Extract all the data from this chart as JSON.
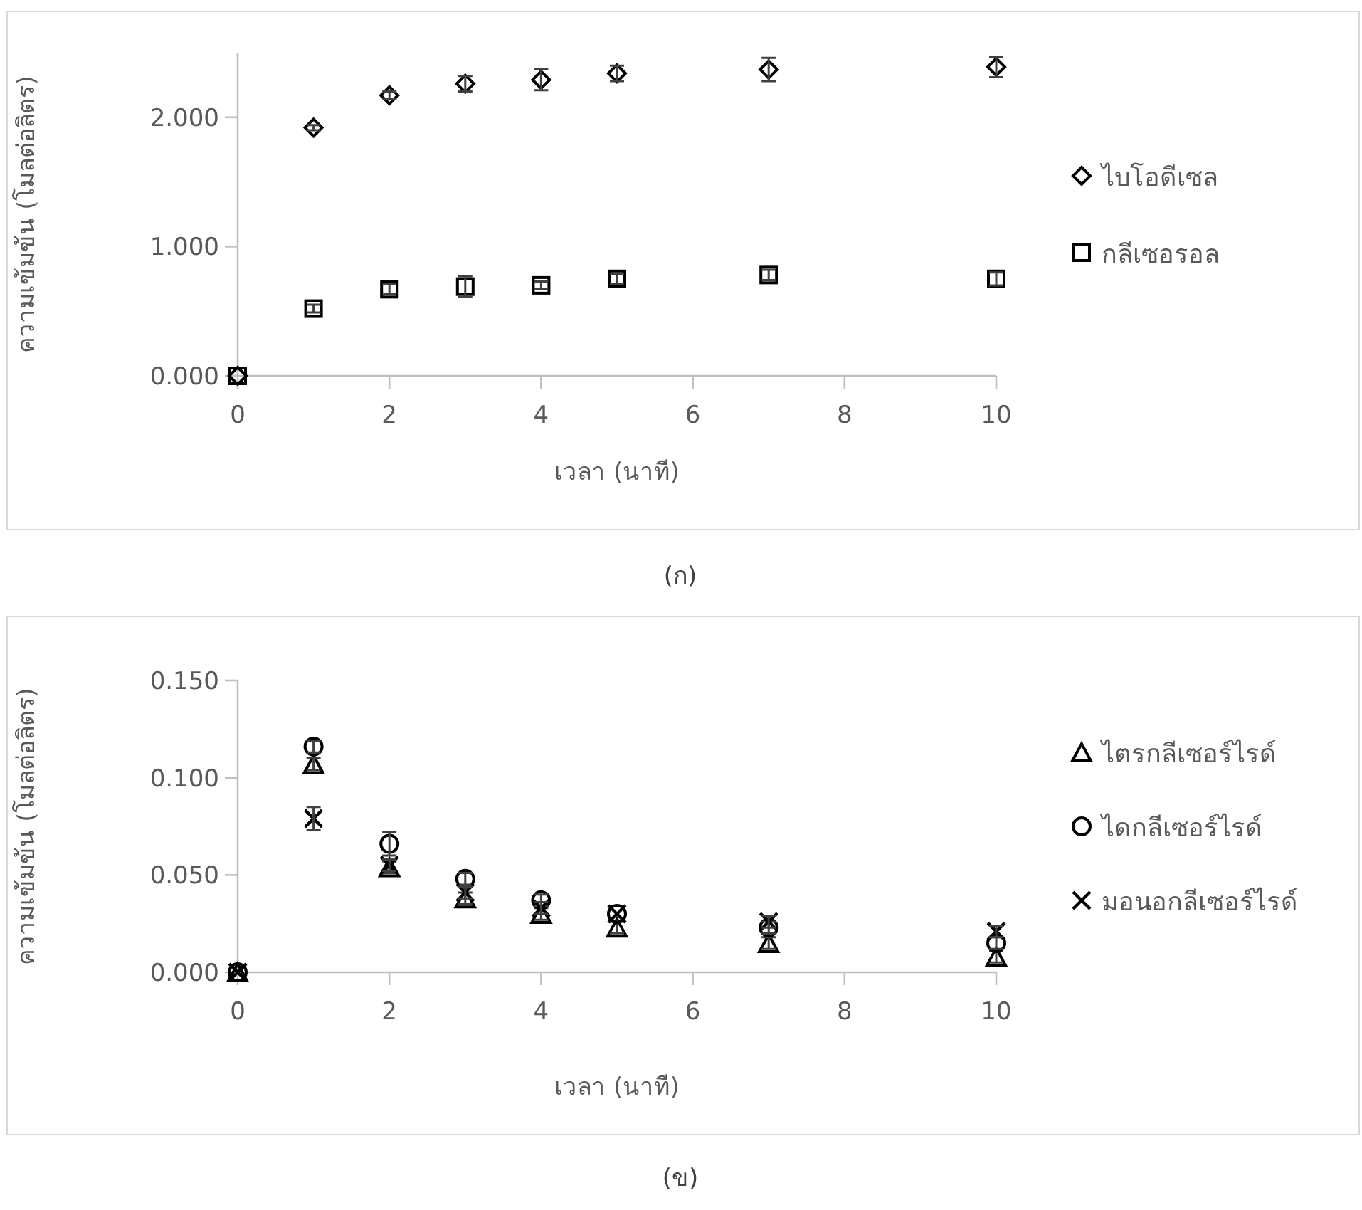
{
  "chart_data": [
    {
      "type": "scatter",
      "ylabel": "ความเข้มข้น (โมลต่อลิตร)",
      "xlabel": "เวลา (นาที)",
      "annotations": [
        "(ก)"
      ],
      "x": [
        0,
        1,
        2,
        3,
        4,
        5,
        7,
        10
      ],
      "xlim": [
        0,
        10
      ],
      "xticks": [
        0,
        2,
        4,
        6,
        8,
        10
      ],
      "ylim": [
        0,
        2.5
      ],
      "yticks": [
        {
          "value": 0,
          "label": "0.000"
        },
        {
          "value": 1,
          "label": "1.000"
        },
        {
          "value": 2,
          "label": "2.000"
        }
      ],
      "legend": "right",
      "series": [
        {
          "name": "ไบโอดีเซล",
          "color": "#000000",
          "marker": "diamond",
          "values": [
            0,
            1.92,
            2.17,
            2.26,
            2.29,
            2.34,
            2.37,
            2.39
          ],
          "errors": [
            null,
            0.02,
            0.03,
            0.06,
            0.08,
            0.06,
            0.09,
            0.08
          ]
        },
        {
          "name": "กลีเซอรอล",
          "color": "#000000",
          "marker": "square",
          "values": [
            0,
            0.52,
            0.67,
            0.69,
            0.7,
            0.75,
            0.78,
            0.75
          ],
          "errors": [
            null,
            0.03,
            0.04,
            0.08,
            0.03,
            0.04,
            0.04,
            0.05
          ]
        }
      ]
    },
    {
      "type": "scatter",
      "ylabel": "ความเข้มข้น (โมลต่อลิตร)",
      "xlabel": "เวลา (นาที)",
      "annotations": [
        "(ข)"
      ],
      "x": [
        0,
        1,
        2,
        3,
        4,
        5,
        7,
        10
      ],
      "xlim": [
        0,
        10
      ],
      "xticks": [
        0,
        2,
        4,
        6,
        8,
        10
      ],
      "ylim": [
        0,
        0.15
      ],
      "yticks": [
        {
          "value": 0,
          "label": "0.000"
        },
        {
          "value": 0.05,
          "label": "0.050"
        },
        {
          "value": 0.1,
          "label": "0.100"
        },
        {
          "value": 0.15,
          "label": "0.150"
        }
      ],
      "legend": "right",
      "series": [
        {
          "name": "ไตรกลีเซอร์ไรด์",
          "color": "#000000",
          "marker": "triangle",
          "values": [
            0,
            0.107,
            0.054,
            0.038,
            0.03,
            0.023,
            0.015,
            0.008
          ],
          "errors": [
            null,
            0.003,
            0.003,
            0.003,
            0.003,
            0.003,
            0.003,
            0.003
          ]
        },
        {
          "name": "ไดกลีเซอร์ไรด์",
          "color": "#000000",
          "marker": "circle",
          "values": [
            0,
            0.116,
            0.066,
            0.048,
            0.037,
            0.03,
            0.023,
            0.015
          ],
          "errors": [
            null,
            0.003,
            0.006,
            0.003,
            0.003,
            null,
            0.003,
            0.003
          ]
        },
        {
          "name": "มอนอกลีเซอร์ไรด์",
          "color": "#000000",
          "marker": "cross",
          "values": [
            0,
            0.079,
            0.055,
            0.041,
            0.033,
            0.03,
            0.026,
            0.021
          ],
          "errors": [
            null,
            0.006,
            0.003,
            0.003,
            0.003,
            null,
            0.003,
            0.003
          ]
        }
      ]
    }
  ]
}
